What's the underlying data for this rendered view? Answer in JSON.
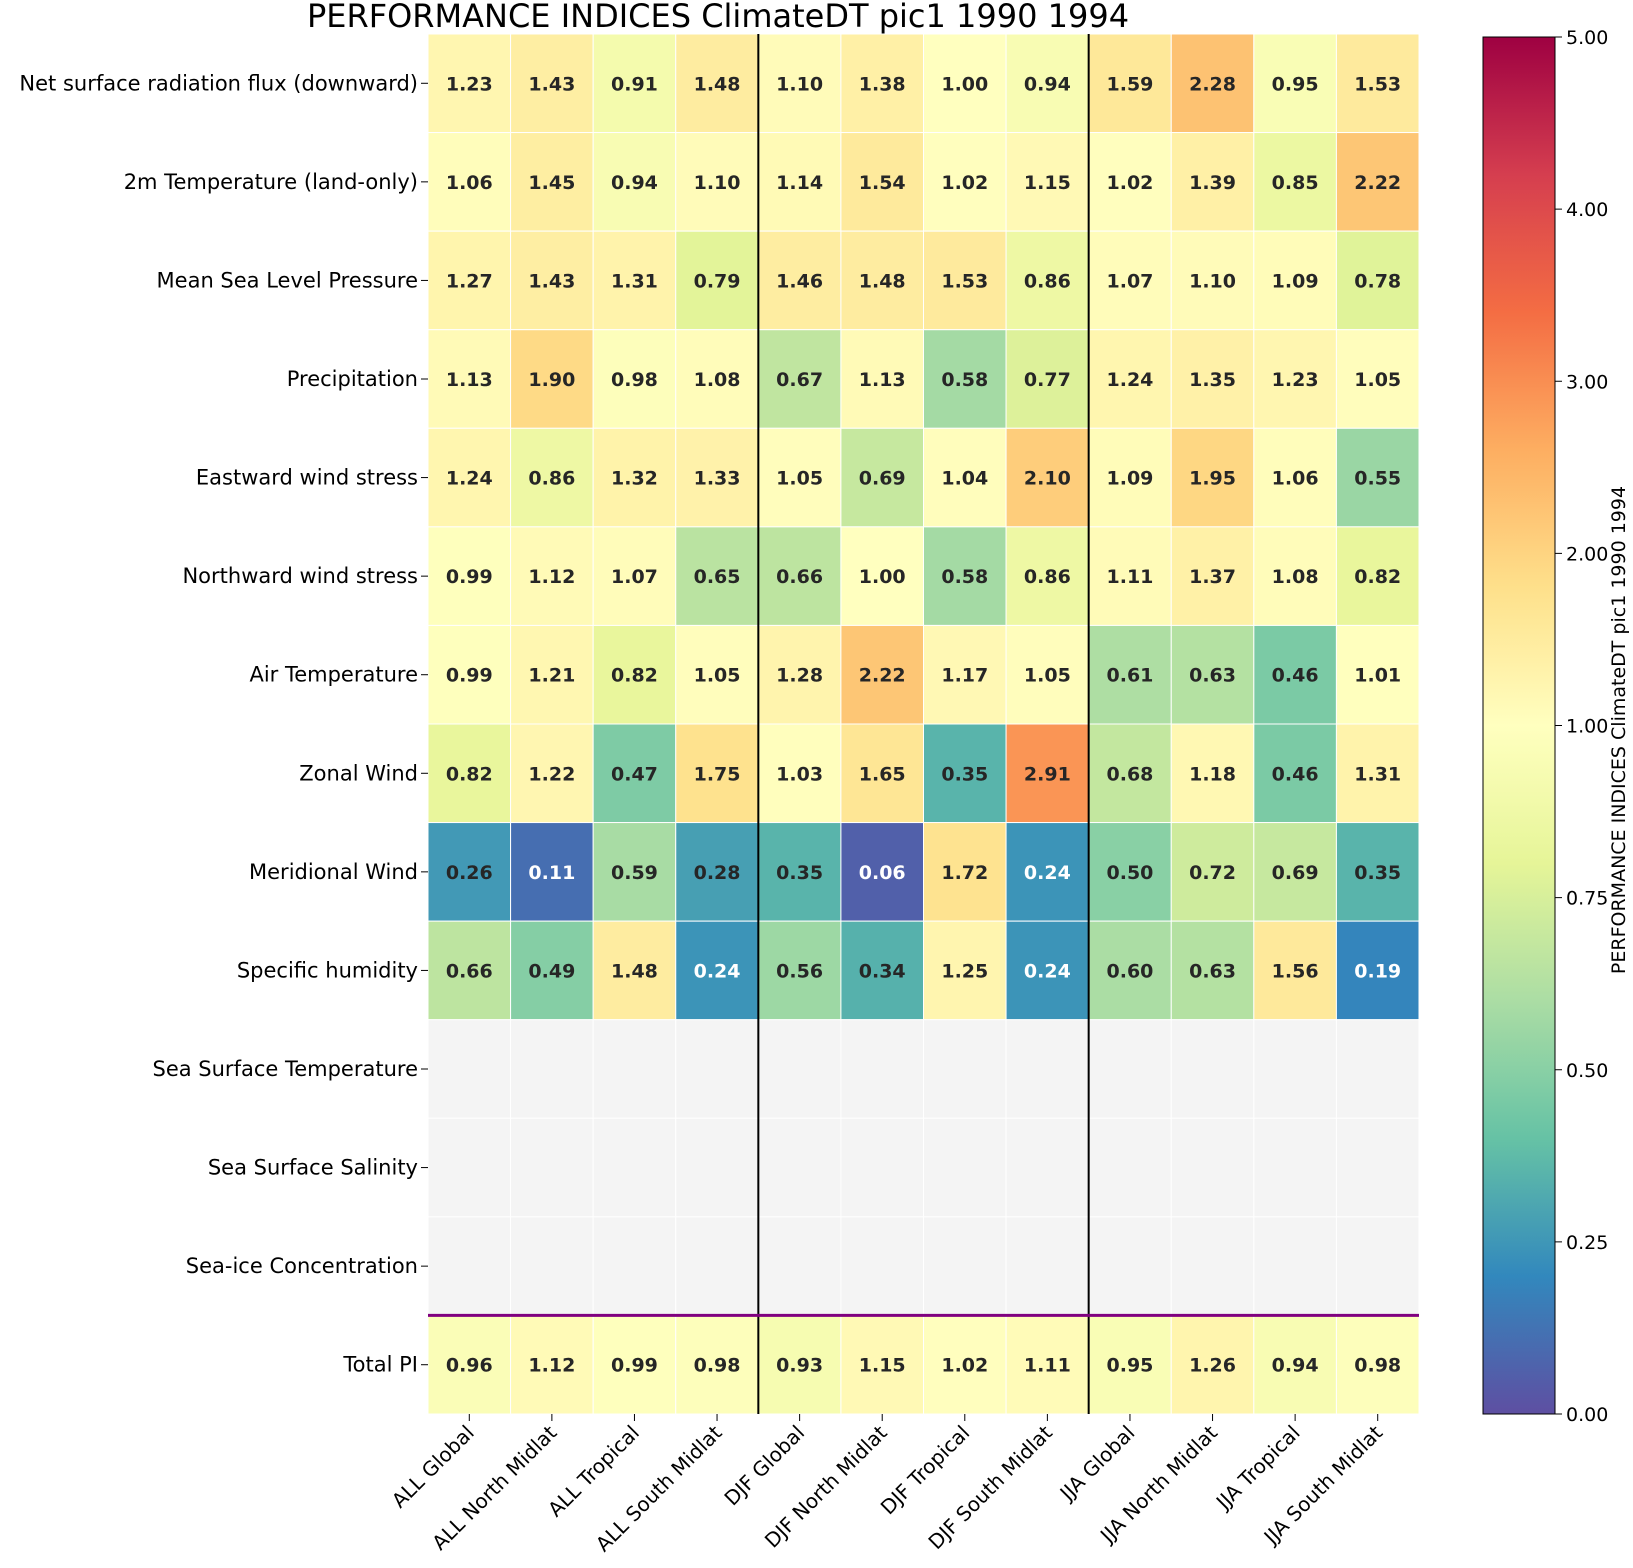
{
  "chart_data": {
    "type": "heatmap",
    "title": "PERFORMANCE INDICES ClimateDT pic1 1990 1994",
    "colorbar_label": "PERFORMANCE INDICES ClimateDT pic1 1990 1994",
    "colormap": "Spectral_r",
    "rows": [
      "Net surface radiation flux (downward)",
      "2m Temperature (land-only)",
      "Mean Sea Level Pressure",
      "Precipitation",
      "Eastward wind stress",
      "Northward wind stress",
      "Air Temperature",
      "Zonal Wind",
      "Meridional Wind",
      "Specific humidity",
      "Sea Surface Temperature",
      "Sea Surface Salinity",
      "Sea-ice Concentration",
      "Total PI"
    ],
    "columns": [
      "ALL Global",
      "ALL North Midlat",
      "ALL Tropical",
      "ALL South Midlat",
      "DJF Global",
      "DJF North Midlat",
      "DJF Tropical",
      "DJF South Midlat",
      "JJA Global",
      "JJA North Midlat",
      "JJA Tropical",
      "JJA South Midlat"
    ],
    "values": [
      [
        1.23,
        1.43,
        0.91,
        1.48,
        1.1,
        1.38,
        1.0,
        0.94,
        1.59,
        2.28,
        0.95,
        1.53
      ],
      [
        1.06,
        1.45,
        0.94,
        1.1,
        1.14,
        1.54,
        1.02,
        1.15,
        1.02,
        1.39,
        0.85,
        2.22
      ],
      [
        1.27,
        1.43,
        1.31,
        0.79,
        1.46,
        1.48,
        1.53,
        0.86,
        1.07,
        1.1,
        1.09,
        0.78
      ],
      [
        1.13,
        1.9,
        0.98,
        1.08,
        0.67,
        1.13,
        0.58,
        0.77,
        1.24,
        1.35,
        1.23,
        1.05
      ],
      [
        1.24,
        0.86,
        1.32,
        1.33,
        1.05,
        0.69,
        1.04,
        2.1,
        1.09,
        1.95,
        1.06,
        0.55
      ],
      [
        0.99,
        1.12,
        1.07,
        0.65,
        0.66,
        1.0,
        0.58,
        0.86,
        1.11,
        1.37,
        1.08,
        0.82
      ],
      [
        0.99,
        1.21,
        0.82,
        1.05,
        1.28,
        2.22,
        1.17,
        1.05,
        0.61,
        0.63,
        0.46,
        1.01
      ],
      [
        0.82,
        1.22,
        0.47,
        1.75,
        1.03,
        1.65,
        0.35,
        2.91,
        0.68,
        1.18,
        0.46,
        1.31
      ],
      [
        0.26,
        0.11,
        0.59,
        0.28,
        0.35,
        0.06,
        1.72,
        0.24,
        0.5,
        0.72,
        0.69,
        0.35
      ],
      [
        0.66,
        0.49,
        1.48,
        0.24,
        0.56,
        0.34,
        1.25,
        0.24,
        0.6,
        0.63,
        1.56,
        0.19
      ],
      [
        null,
        null,
        null,
        null,
        null,
        null,
        null,
        null,
        null,
        null,
        null,
        null
      ],
      [
        null,
        null,
        null,
        null,
        null,
        null,
        null,
        null,
        null,
        null,
        null,
        null
      ],
      [
        null,
        null,
        null,
        null,
        null,
        null,
        null,
        null,
        null,
        null,
        null,
        null
      ],
      [
        0.96,
        1.12,
        0.99,
        0.98,
        0.93,
        1.15,
        1.02,
        1.11,
        0.95,
        1.26,
        0.94,
        0.98
      ]
    ],
    "missing_color": "#f4f4f4",
    "colorbar_ticks": [
      "0.00",
      "0.25",
      "0.50",
      "0.75",
      "1.00",
      "2.00",
      "3.00",
      "4.00",
      "5.00"
    ],
    "colorbar_range": [
      0,
      5
    ],
    "colorbar_knee": 1.0,
    "season_separator_after_columns": [
      4,
      8
    ],
    "separator_color": "#000000",
    "total_separator_color": "#800080"
  }
}
